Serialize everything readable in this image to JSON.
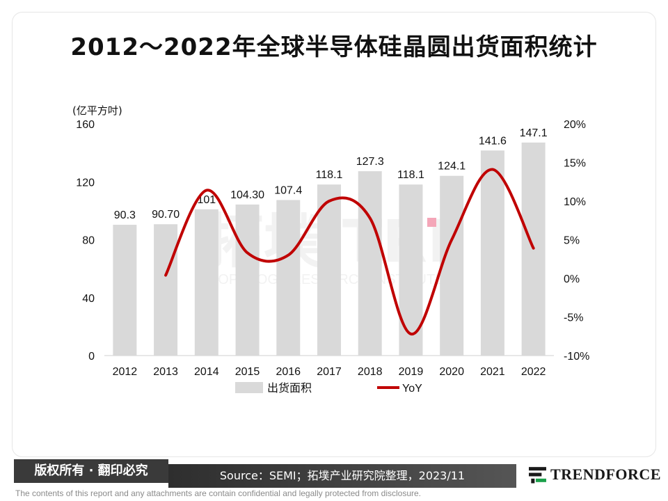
{
  "title": "2012～2022年全球半导体硅晶圆出货面积统计",
  "copyright": "版权所有 · 翻印必究",
  "source": "Source：SEMI；拓墣产业研究院整理，2023/11",
  "logo_text": "TRENDFORCE",
  "disclaimer": "The contents of this report and any attachments are contain confidential and legally protected from disclosure.",
  "colors": {
    "bar": "#d9d9d9",
    "line": "#c00000",
    "watermark": "#f2f2f2",
    "marker": "#f4a6b8"
  },
  "chart_data": {
    "type": "bar",
    "ylabel_left": "(亿平方吋)",
    "categories": [
      "2012",
      "2013",
      "2014",
      "2015",
      "2016",
      "2017",
      "2018",
      "2019",
      "2020",
      "2021",
      "2022"
    ],
    "series": [
      {
        "name": "出货面积",
        "type": "bar",
        "axis": "left",
        "values": [
          90.3,
          90.7,
          101,
          104.3,
          107.4,
          118.1,
          127.3,
          118.1,
          124.1,
          141.6,
          147.1
        ],
        "labels": [
          "90.3",
          "90.70",
          "101",
          "104.30",
          "107.4",
          "118.1",
          "127.3",
          "118.1",
          "124.1",
          "141.6",
          "147.1"
        ]
      },
      {
        "name": "YoY",
        "type": "line",
        "axis": "right",
        "x": [
          "2013",
          "2014",
          "2015",
          "2016",
          "2017",
          "2018",
          "2019",
          "2020",
          "2021",
          "2022"
        ],
        "values": [
          0.4,
          11.4,
          3.3,
          3.0,
          10.0,
          7.8,
          -7.2,
          5.0,
          14.1,
          3.9
        ]
      }
    ],
    "ylim_left": [
      0,
      160
    ],
    "yticks_left": [
      "0",
      "40",
      "80",
      "120",
      "160"
    ],
    "ylim_right": [
      -10,
      20
    ],
    "yticks_right": [
      "-10%",
      "-5%",
      "0%",
      "5%",
      "10%",
      "15%",
      "20%"
    ],
    "legend_position": "bottom",
    "grid": false,
    "watermark": {
      "main": "拓墣 TRI",
      "sub": "TOPOLOGY RESEARCH INSTITUTE"
    }
  }
}
